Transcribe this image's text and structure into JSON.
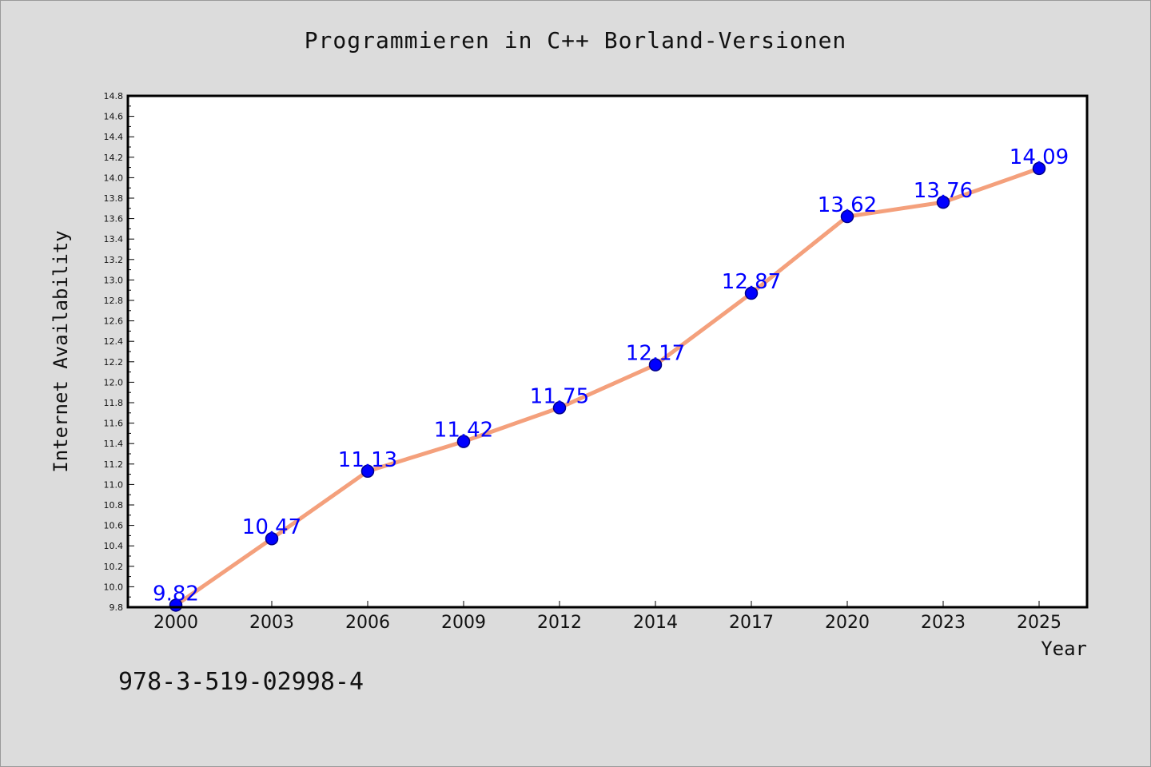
{
  "chart_data": {
    "type": "line",
    "title": "Programmieren in C++ Borland-Versionen",
    "xlabel": "Year",
    "ylabel": "Internet Availability",
    "categories": [
      "2000",
      "2003",
      "2006",
      "2009",
      "2012",
      "2014",
      "2017",
      "2020",
      "2023",
      "2025"
    ],
    "series": [
      {
        "values": [
          9.82,
          10.47,
          11.13,
          11.42,
          11.75,
          12.17,
          12.87,
          13.62,
          13.76,
          14.09
        ],
        "labels": [
          "9.82",
          "10.47",
          "11.13",
          "11.42",
          "11.75",
          "12.17",
          "12.87",
          "13.62",
          "13.76",
          "14.09"
        ]
      }
    ],
    "ylim": [
      9.8,
      14.8
    ],
    "yticks": [
      "9.8",
      "10.0",
      "10.2",
      "10.4",
      "10.6",
      "10.8",
      "11.0",
      "11.2",
      "11.4",
      "11.6",
      "11.8",
      "12.0",
      "12.2",
      "12.4",
      "12.6",
      "12.8",
      "13.0",
      "13.2",
      "13.4",
      "13.6",
      "13.8",
      "14.0",
      "14.2",
      "14.4",
      "14.6",
      "14.8"
    ],
    "grid": false,
    "colors": {
      "line": "#f4a07c",
      "marker": "#0000ff",
      "marker_edge": "#00008b",
      "data_label": "#0000ff",
      "plot_background": "#ffffff",
      "figure_background": "#dcdcdc"
    }
  },
  "footer": {
    "isbn": "978-3-519-02998-4"
  }
}
